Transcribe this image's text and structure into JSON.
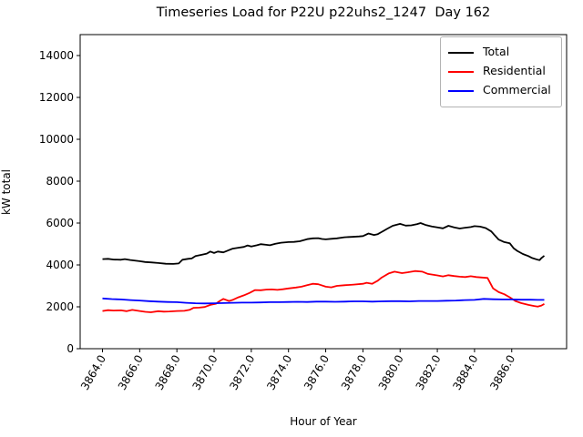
{
  "title": "Timeseries Load for P22U p22uhs2_1247  Day 162",
  "xlabel": "Hour of Year",
  "ylabel": "kW total",
  "chart_data": {
    "type": "line",
    "title": "Timeseries Load for P22U p22uhs2_1247  Day 162",
    "xlabel": "Hour of Year",
    "ylabel": "kW total",
    "grid": false,
    "legend_position": "upper right",
    "xlim": [
      3862.8,
      3888.95
    ],
    "ylim": [
      0,
      15000
    ],
    "x_ticks": [
      3864,
      3866,
      3868,
      3870,
      3872,
      3874,
      3876,
      3878,
      3880,
      3882,
      3884,
      3886
    ],
    "x_tick_labels": [
      "3864.0",
      "3866.0",
      "3868.0",
      "3870.0",
      "3872.0",
      "3874.0",
      "3876.0",
      "3878.0",
      "3880.0",
      "3882.0",
      "3884.0",
      "3886.0"
    ],
    "y_ticks": [
      0,
      2000,
      4000,
      6000,
      8000,
      10000,
      12000,
      14000
    ],
    "y_tick_labels": [
      "0",
      "2000",
      "4000",
      "6000",
      "8000",
      "10000",
      "12000",
      "14000"
    ],
    "series": [
      {
        "name": "Total",
        "color": "#000000",
        "points": [
          [
            3864.0,
            4280
          ],
          [
            3864.3,
            4290
          ],
          [
            3864.6,
            4255
          ],
          [
            3865.0,
            4250
          ],
          [
            3865.2,
            4280
          ],
          [
            3865.5,
            4235
          ],
          [
            3866.0,
            4180
          ],
          [
            3866.3,
            4140
          ],
          [
            3866.6,
            4120
          ],
          [
            3867.0,
            4090
          ],
          [
            3867.4,
            4055
          ],
          [
            3867.8,
            4050
          ],
          [
            3868.1,
            4070
          ],
          [
            3868.3,
            4250
          ],
          [
            3868.6,
            4290
          ],
          [
            3868.8,
            4310
          ],
          [
            3869.0,
            4420
          ],
          [
            3869.3,
            4480
          ],
          [
            3869.6,
            4540
          ],
          [
            3869.8,
            4640
          ],
          [
            3870.0,
            4570
          ],
          [
            3870.2,
            4640
          ],
          [
            3870.5,
            4600
          ],
          [
            3870.8,
            4710
          ],
          [
            3871.0,
            4780
          ],
          [
            3871.3,
            4820
          ],
          [
            3871.6,
            4860
          ],
          [
            3871.8,
            4930
          ],
          [
            3872.0,
            4880
          ],
          [
            3872.3,
            4940
          ],
          [
            3872.5,
            4990
          ],
          [
            3872.8,
            4960
          ],
          [
            3873.0,
            4940
          ],
          [
            3873.3,
            5010
          ],
          [
            3873.6,
            5060
          ],
          [
            3874.0,
            5090
          ],
          [
            3874.3,
            5100
          ],
          [
            3874.6,
            5130
          ],
          [
            3875.0,
            5230
          ],
          [
            3875.3,
            5270
          ],
          [
            3875.6,
            5280
          ],
          [
            3875.8,
            5240
          ],
          [
            3876.0,
            5220
          ],
          [
            3876.3,
            5250
          ],
          [
            3876.6,
            5270
          ],
          [
            3877.0,
            5320
          ],
          [
            3877.4,
            5340
          ],
          [
            3877.8,
            5360
          ],
          [
            3878.0,
            5380
          ],
          [
            3878.3,
            5500
          ],
          [
            3878.6,
            5430
          ],
          [
            3878.8,
            5470
          ],
          [
            3879.0,
            5570
          ],
          [
            3879.3,
            5720
          ],
          [
            3879.6,
            5870
          ],
          [
            3880.0,
            5960
          ],
          [
            3880.3,
            5880
          ],
          [
            3880.6,
            5890
          ],
          [
            3880.9,
            5950
          ],
          [
            3881.1,
            6000
          ],
          [
            3881.4,
            5900
          ],
          [
            3881.7,
            5840
          ],
          [
            3882.0,
            5790
          ],
          [
            3882.3,
            5750
          ],
          [
            3882.6,
            5870
          ],
          [
            3882.9,
            5790
          ],
          [
            3883.2,
            5740
          ],
          [
            3883.5,
            5780
          ],
          [
            3883.8,
            5810
          ],
          [
            3884.0,
            5850
          ],
          [
            3884.3,
            5830
          ],
          [
            3884.6,
            5760
          ],
          [
            3884.9,
            5600
          ],
          [
            3885.1,
            5400
          ],
          [
            3885.3,
            5210
          ],
          [
            3885.6,
            5090
          ],
          [
            3885.9,
            5030
          ],
          [
            3886.1,
            4800
          ],
          [
            3886.3,
            4670
          ],
          [
            3886.6,
            4520
          ],
          [
            3886.9,
            4420
          ],
          [
            3887.1,
            4330
          ],
          [
            3887.4,
            4250
          ],
          [
            3887.5,
            4230
          ],
          [
            3887.6,
            4330
          ],
          [
            3887.75,
            4440
          ]
        ]
      },
      {
        "name": "Residential",
        "color": "#ff0000",
        "points": [
          [
            3864.0,
            1800
          ],
          [
            3864.3,
            1840
          ],
          [
            3864.6,
            1820
          ],
          [
            3865.0,
            1830
          ],
          [
            3865.3,
            1790
          ],
          [
            3865.6,
            1850
          ],
          [
            3866.0,
            1800
          ],
          [
            3866.3,
            1760
          ],
          [
            3866.6,
            1740
          ],
          [
            3867.0,
            1790
          ],
          [
            3867.3,
            1770
          ],
          [
            3867.6,
            1780
          ],
          [
            3868.0,
            1800
          ],
          [
            3868.4,
            1810
          ],
          [
            3868.7,
            1860
          ],
          [
            3868.9,
            1950
          ],
          [
            3869.2,
            1960
          ],
          [
            3869.5,
            1990
          ],
          [
            3869.8,
            2090
          ],
          [
            3870.1,
            2150
          ],
          [
            3870.3,
            2280
          ],
          [
            3870.5,
            2380
          ],
          [
            3870.8,
            2280
          ],
          [
            3871.0,
            2330
          ],
          [
            3871.3,
            2450
          ],
          [
            3871.6,
            2550
          ],
          [
            3871.9,
            2660
          ],
          [
            3872.2,
            2800
          ],
          [
            3872.5,
            2790
          ],
          [
            3872.8,
            2820
          ],
          [
            3873.1,
            2830
          ],
          [
            3873.4,
            2810
          ],
          [
            3873.7,
            2840
          ],
          [
            3874.0,
            2880
          ],
          [
            3874.4,
            2920
          ],
          [
            3874.7,
            2960
          ],
          [
            3875.0,
            3030
          ],
          [
            3875.3,
            3100
          ],
          [
            3875.6,
            3080
          ],
          [
            3876.0,
            2960
          ],
          [
            3876.3,
            2930
          ],
          [
            3876.6,
            3000
          ],
          [
            3877.0,
            3030
          ],
          [
            3877.5,
            3060
          ],
          [
            3878.0,
            3100
          ],
          [
            3878.2,
            3150
          ],
          [
            3878.5,
            3100
          ],
          [
            3878.8,
            3250
          ],
          [
            3879.0,
            3390
          ],
          [
            3879.4,
            3600
          ],
          [
            3879.7,
            3680
          ],
          [
            3880.1,
            3610
          ],
          [
            3880.4,
            3650
          ],
          [
            3880.8,
            3710
          ],
          [
            3881.2,
            3680
          ],
          [
            3881.5,
            3570
          ],
          [
            3882.0,
            3500
          ],
          [
            3882.3,
            3450
          ],
          [
            3882.6,
            3510
          ],
          [
            3882.9,
            3470
          ],
          [
            3883.2,
            3440
          ],
          [
            3883.5,
            3420
          ],
          [
            3883.8,
            3460
          ],
          [
            3884.1,
            3420
          ],
          [
            3884.4,
            3400
          ],
          [
            3884.7,
            3380
          ],
          [
            3885.0,
            2880
          ],
          [
            3885.3,
            2700
          ],
          [
            3885.6,
            2600
          ],
          [
            3885.9,
            2450
          ],
          [
            3886.2,
            2280
          ],
          [
            3886.5,
            2180
          ],
          [
            3886.9,
            2090
          ],
          [
            3887.2,
            2040
          ],
          [
            3887.4,
            2010
          ],
          [
            3887.6,
            2060
          ],
          [
            3887.75,
            2140
          ]
        ]
      },
      {
        "name": "Commercial",
        "color": "#0000ff",
        "points": [
          [
            3864.0,
            2400
          ],
          [
            3864.5,
            2370
          ],
          [
            3865.0,
            2350
          ],
          [
            3865.5,
            2320
          ],
          [
            3866.0,
            2300
          ],
          [
            3866.5,
            2270
          ],
          [
            3867.0,
            2250
          ],
          [
            3867.5,
            2230
          ],
          [
            3868.0,
            2220
          ],
          [
            3868.5,
            2190
          ],
          [
            3869.0,
            2170
          ],
          [
            3869.5,
            2160
          ],
          [
            3870.0,
            2170
          ],
          [
            3870.5,
            2180
          ],
          [
            3871.0,
            2190
          ],
          [
            3871.5,
            2200
          ],
          [
            3872.0,
            2200
          ],
          [
            3872.5,
            2210
          ],
          [
            3873.0,
            2220
          ],
          [
            3873.5,
            2220
          ],
          [
            3874.0,
            2230
          ],
          [
            3874.5,
            2240
          ],
          [
            3875.0,
            2230
          ],
          [
            3875.5,
            2250
          ],
          [
            3876.0,
            2250
          ],
          [
            3876.5,
            2240
          ],
          [
            3877.0,
            2250
          ],
          [
            3877.5,
            2260
          ],
          [
            3878.0,
            2260
          ],
          [
            3878.5,
            2250
          ],
          [
            3879.0,
            2260
          ],
          [
            3879.5,
            2270
          ],
          [
            3880.0,
            2270
          ],
          [
            3880.5,
            2260
          ],
          [
            3881.0,
            2280
          ],
          [
            3881.5,
            2280
          ],
          [
            3882.0,
            2280
          ],
          [
            3882.5,
            2290
          ],
          [
            3883.0,
            2300
          ],
          [
            3883.5,
            2320
          ],
          [
            3884.0,
            2330
          ],
          [
            3884.5,
            2380
          ],
          [
            3885.0,
            2360
          ],
          [
            3885.5,
            2350
          ],
          [
            3886.0,
            2350
          ],
          [
            3886.5,
            2340
          ],
          [
            3887.0,
            2340
          ],
          [
            3887.4,
            2330
          ],
          [
            3887.75,
            2330
          ]
        ]
      }
    ]
  }
}
